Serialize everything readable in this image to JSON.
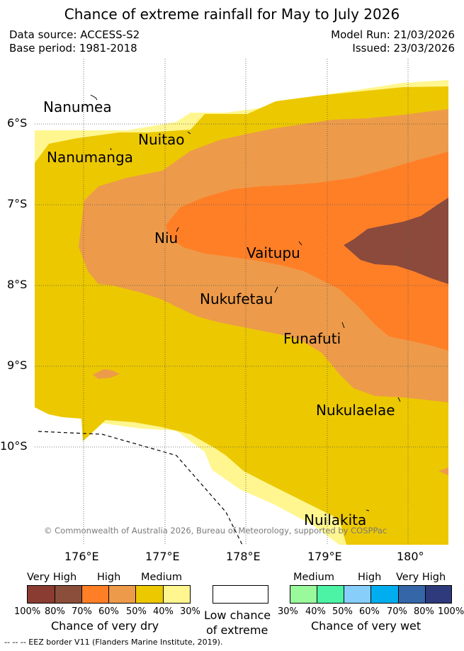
{
  "title": "Chance of extreme rainfall for May to July 2026",
  "header": {
    "data_source": "Data source: ACCESS-S2",
    "base_period": "Base period: 1981-2018",
    "model_run": "Model Run: 21/03/2026",
    "issued": "Issued: 23/03/2026"
  },
  "map": {
    "latitude_labels": [
      "6°S",
      "7°S",
      "8°S",
      "9°S",
      "10°S"
    ],
    "longitude_labels": [
      "176°E",
      "177°E",
      "178°E",
      "179°E",
      "180°"
    ],
    "places": {
      "nanumea": "Nanumea",
      "nanumanga": "Nanumanga",
      "nuitao": "Nuitao",
      "niu": "Niu",
      "vaitupu": "Vaitupu",
      "nukufetau": "Nukufetau",
      "funafuti": "Funafuti",
      "nukulaelae": "Nukulaelae",
      "nuilakita": "Nuilakita"
    },
    "copyright": "© Commonwealth of Australia 2026, Bureau of Meteorology, supported by COSPPac",
    "colors": {
      "dry_100_80": "#8B4A3C",
      "dry_70_60": "#FF7F27",
      "dry_60_50": "#ED9B4A",
      "dry_50_40": "#ECC800",
      "dry_40_30": "#FFF68F"
    }
  },
  "legend": {
    "dry": {
      "categories": [
        "Very High",
        "High",
        "Medium"
      ],
      "ticks": [
        "100%",
        "80%",
        "70%",
        "60%",
        "50%",
        "40%",
        "30%"
      ],
      "title": "Chance of very dry",
      "colors": [
        "#8A3C33",
        "#8B4E3A",
        "#FF7F27",
        "#ED9B4A",
        "#ECC800",
        "#FFF68F"
      ]
    },
    "low": {
      "line1": "Low chance",
      "line2": "of extreme",
      "color": "#FFFFFF"
    },
    "wet": {
      "categories": [
        "Medium",
        "High",
        "Very High"
      ],
      "ticks": [
        "30%",
        "40%",
        "50%",
        "60%",
        "70%",
        "80%",
        "100%"
      ],
      "title": "Chance of very wet",
      "colors": [
        "#9AF99A",
        "#4CF3A4",
        "#87CEFA",
        "#00AEEF",
        "#3466A8",
        "#2E3A7C"
      ]
    }
  },
  "footnote": "-- -- -- EEZ border V11 (Flanders Marine Institute, 2019)."
}
